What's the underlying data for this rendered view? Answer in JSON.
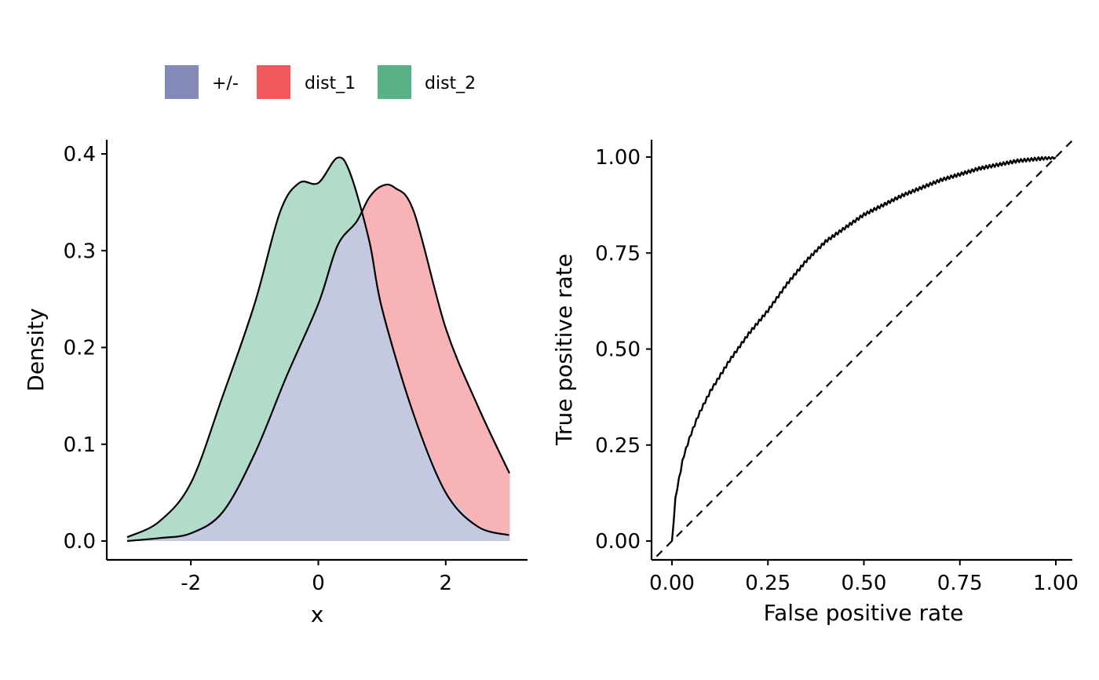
{
  "chart_data": [
    {
      "type": "area",
      "xlabel": "x",
      "ylabel": "Density",
      "xlim": [
        -3,
        3
      ],
      "ylim": [
        0,
        0.4
      ],
      "x_ticks": [
        "-2",
        "0",
        "2"
      ],
      "y_ticks": [
        "0.0",
        "0.1",
        "0.2",
        "0.3",
        "0.4"
      ],
      "grid": false,
      "legend": {
        "position": "top",
        "entries": [
          {
            "label": "+/-",
            "color": "#838AB8"
          },
          {
            "label": "dist_1",
            "color": "#F2585B"
          },
          {
            "label": "dist_2",
            "color": "#58B286"
          }
        ]
      },
      "series": [
        {
          "name": "dist_1",
          "fill": "#F7B3B5",
          "x": [
            -3.0,
            -2.5,
            -2.0,
            -1.5,
            -1.0,
            -0.5,
            0.0,
            0.3,
            0.6,
            0.8,
            1.0,
            1.2,
            1.5,
            2.0,
            2.5,
            3.0
          ],
          "y": [
            0.0,
            0.003,
            0.008,
            0.03,
            0.09,
            0.17,
            0.245,
            0.305,
            0.33,
            0.355,
            0.367,
            0.365,
            0.34,
            0.22,
            0.14,
            0.07
          ]
        },
        {
          "name": "dist_2",
          "fill": "#B2DCCA",
          "x": [
            -3.0,
            -2.5,
            -2.0,
            -1.5,
            -1.0,
            -0.6,
            -0.3,
            0.0,
            0.3,
            0.5,
            0.8,
            1.0,
            1.5,
            2.0,
            2.5,
            3.0
          ],
          "y": [
            0.004,
            0.02,
            0.06,
            0.15,
            0.245,
            0.34,
            0.37,
            0.37,
            0.396,
            0.38,
            0.31,
            0.24,
            0.13,
            0.05,
            0.015,
            0.006
          ]
        }
      ],
      "overlap_fill": "#C4C8E0"
    },
    {
      "type": "line",
      "xlabel": "False positive rate",
      "ylabel": "True positive rate",
      "xlim": [
        0,
        1
      ],
      "ylim": [
        0,
        1
      ],
      "x_ticks": [
        "0.00",
        "0.25",
        "0.50",
        "0.75",
        "1.00"
      ],
      "y_ticks": [
        "0.00",
        "0.25",
        "0.50",
        "0.75",
        "1.00"
      ],
      "grid": false,
      "series": [
        {
          "x": [
            0.0,
            0.005,
            0.01,
            0.02,
            0.03,
            0.05,
            0.07,
            0.1,
            0.15,
            0.2,
            0.25,
            0.3,
            0.35,
            0.4,
            0.5,
            0.6,
            0.7,
            0.8,
            0.9,
            1.0
          ],
          "y": [
            0.0,
            0.06,
            0.12,
            0.17,
            0.22,
            0.28,
            0.33,
            0.39,
            0.47,
            0.54,
            0.6,
            0.67,
            0.73,
            0.78,
            0.85,
            0.9,
            0.94,
            0.97,
            0.99,
            1.0
          ]
        },
        {
          "x": [
            0,
            1
          ],
          "y": [
            0,
            1
          ],
          "dashed": true
        }
      ]
    }
  ]
}
